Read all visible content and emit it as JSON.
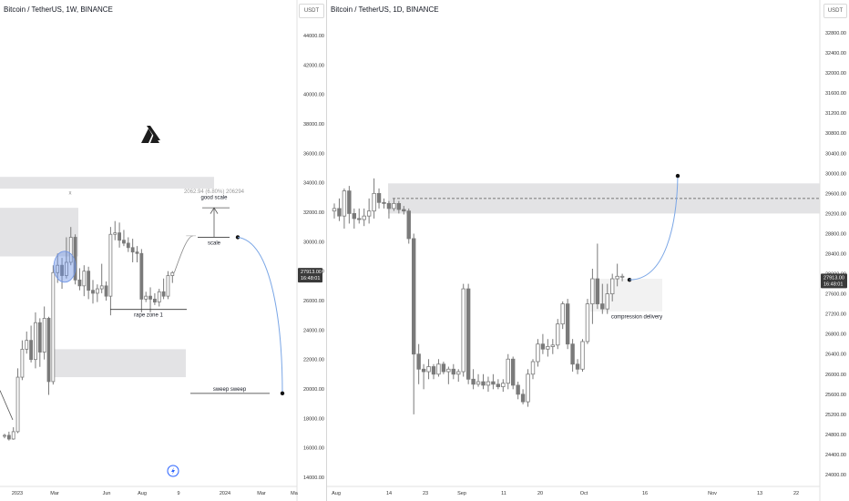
{
  "colors": {
    "candle": "#7a7a7a",
    "zone_fill": "#e3e3e5",
    "highlight": "#6f95e6",
    "arrow": "#7aa6e6",
    "text": "#131722",
    "axis_text": "#333333",
    "price_label_bg": "#3a3a3a"
  },
  "left": {
    "title": "Bitcoin / TetherUS, 1W, BINANCE",
    "unit_button": "USDT",
    "price_label": "27913.00",
    "countdown_label": "16:48:01",
    "logo_icon": "tradingview-logo-icon",
    "lightning_icon": "lightning-icon",
    "annotations": {
      "x_marker": "x",
      "measure": "2062.94 (6.80%) 206294",
      "good_scale": "good scale",
      "scale": "scale",
      "rape_zone": "rape zone 1",
      "sweep": "sweep sweep"
    }
  },
  "right": {
    "title": "Bitcoin / TetherUS, 1D, BINANCE",
    "unit_button": "USDT",
    "price_label": "27913.00",
    "countdown_label": "16:48:01",
    "annotations": {
      "compression": "compression delivery"
    }
  },
  "chart_data": [
    {
      "type": "candlestick",
      "title": "Bitcoin / TetherUS, 1W, BINANCE",
      "timeframe": "1W",
      "y_axis_ticks": [
        14000,
        16000,
        18000,
        20000,
        22000,
        24000,
        26000,
        28000,
        30000,
        32000,
        34000,
        36000,
        38000,
        40000,
        42000,
        44000
      ],
      "ylim": [
        13500,
        45500
      ],
      "x_axis_ticks": [
        "2023",
        "Mar",
        "Jun",
        "Aug",
        "9",
        "2024",
        "Mar",
        "Ma"
      ],
      "last_price": 27913.0,
      "series": [
        {
          "name": "candles",
          "ohlc": [
            [
              16800,
              16950,
              16650,
              16850
            ],
            [
              16850,
              17100,
              16500,
              16600
            ],
            [
              16600,
              17400,
              16550,
              17100
            ],
            [
              17100,
              21400,
              17000,
              20800
            ],
            [
              20800,
              23300,
              20600,
              22700
            ],
            [
              22700,
              23900,
              22400,
              23300
            ],
            [
              23300,
              24300,
              21800,
              22000
            ],
            [
              22000,
              25200,
              21400,
              24500
            ],
            [
              24500,
              24800,
              21500,
              22500
            ],
            [
              22500,
              25600,
              22000,
              24800
            ],
            [
              24800,
              24900,
              19600,
              20500
            ],
            [
              20500,
              28400,
              20300,
              27900
            ],
            [
              27900,
              29200,
              27200,
              28400
            ],
            [
              28400,
              28900,
              26800,
              27700
            ],
            [
              27700,
              30300,
              27500,
              28600
            ],
            [
              28600,
              31000,
              28400,
              30300
            ],
            [
              30300,
              30500,
              27100,
              27400
            ],
            [
              27400,
              28200,
              26700,
              27000
            ],
            [
              27000,
              28400,
              26300,
              28000
            ],
            [
              28000,
              28300,
              26100,
              26700
            ],
            [
              26700,
              27400,
              25800,
              26500
            ],
            [
              26500,
              27100,
              25900,
              26800
            ],
            [
              26800,
              28500,
              26500,
              27000
            ],
            [
              27000,
              27300,
              26000,
              26300
            ],
            [
              26300,
              31000,
              25000,
              30500
            ],
            [
              30500,
              31400,
              30100,
              30600
            ],
            [
              30600,
              31300,
              29600,
              30100
            ],
            [
              30100,
              30800,
              29700,
              29900
            ],
            [
              29900,
              30300,
              29300,
              29600
            ],
            [
              29600,
              30200,
              28600,
              29300
            ],
            [
              29300,
              29700,
              28600,
              29200
            ],
            [
              29200,
              29500,
              25200,
              26100
            ],
            [
              26100,
              26600,
              25900,
              26300
            ],
            [
              26300,
              26900,
              25200,
              26100
            ],
            [
              26100,
              26500,
              25700,
              25900
            ],
            [
              25900,
              26800,
              25600,
              26600
            ],
            [
              26600,
              27500,
              26100,
              26300
            ],
            [
              26300,
              28000,
              26100,
              27700
            ],
            [
              27700,
              28000,
              27200,
              27900
            ]
          ]
        }
      ],
      "zones": [
        {
          "label": "",
          "price_range": [
            33600,
            34400
          ]
        },
        {
          "label": "",
          "price_range": [
            29000,
            32300
          ]
        },
        {
          "label": "",
          "price_range": [
            20800,
            22700
          ]
        }
      ],
      "annotations": [
        "x",
        "2062.94 (6.80%) 206294",
        "good scale",
        "scale",
        "rape zone 1",
        "sweep sweep"
      ]
    },
    {
      "type": "candlestick",
      "title": "Bitcoin / TetherUS, 1D, BINANCE",
      "timeframe": "1D",
      "y_axis_ticks": [
        24000,
        24400,
        24800,
        25200,
        25600,
        26000,
        26400,
        26800,
        27200,
        27600,
        28000,
        28400,
        28800,
        29200,
        29600,
        30000,
        30400,
        30800,
        31200,
        31600,
        32000,
        32400,
        32800
      ],
      "ylim": [
        23900,
        33050
      ],
      "x_axis_ticks": [
        "Aug",
        "14",
        "23",
        "Sep",
        "11",
        "20",
        "Oct",
        "16",
        "Nov",
        "13",
        "22"
      ],
      "last_price": 27913.0,
      "series": [
        {
          "name": "candles",
          "ohlc": [
            [
              29250,
              29400,
              29100,
              29300
            ],
            [
              29300,
              29500,
              29050,
              29150
            ],
            [
              29150,
              29700,
              28900,
              29650
            ],
            [
              29650,
              29750,
              29000,
              29200
            ],
            [
              29200,
              29300,
              28900,
              29100
            ],
            [
              29100,
              29300,
              29000,
              29080
            ],
            [
              29080,
              29300,
              28950,
              29150
            ],
            [
              29150,
              29500,
              29000,
              29250
            ],
            [
              29250,
              29900,
              29100,
              29600
            ],
            [
              29600,
              29700,
              29300,
              29420
            ],
            [
              29420,
              29500,
              29300,
              29400
            ],
            [
              29400,
              29450,
              29100,
              29300
            ],
            [
              29300,
              29500,
              29250,
              29400
            ],
            [
              29400,
              29450,
              29200,
              29280
            ],
            [
              29280,
              29350,
              29180,
              29250
            ],
            [
              29250,
              29300,
              28600,
              28700
            ],
            [
              28700,
              28800,
              25200,
              26400
            ],
            [
              26400,
              26600,
              25800,
              26100
            ],
            [
              26100,
              26200,
              25700,
              26050
            ],
            [
              26050,
              26300,
              25900,
              26150
            ],
            [
              26150,
              26200,
              25900,
              26000
            ],
            [
              26000,
              26300,
              25950,
              26200
            ],
            [
              26200,
              26250,
              26000,
              26050
            ],
            [
              26050,
              26150,
              25800,
              26100
            ],
            [
              26100,
              26200,
              25900,
              26000
            ],
            [
              26000,
              26100,
              25850,
              26050
            ],
            [
              26050,
              27800,
              25950,
              27700
            ],
            [
              27700,
              27800,
              25800,
              25900
            ],
            [
              25900,
              26100,
              25700,
              25800
            ],
            [
              25800,
              26000,
              25750,
              25850
            ],
            [
              25850,
              26000,
              25700,
              25780
            ],
            [
              25780,
              25950,
              25650,
              25850
            ],
            [
              25850,
              26000,
              25700,
              25800
            ],
            [
              25800,
              25900,
              25700,
              25750
            ],
            [
              25750,
              25900,
              25650,
              25820
            ],
            [
              25820,
              26400,
              25700,
              26300
            ],
            [
              26300,
              26350,
              25700,
              25780
            ],
            [
              25780,
              25850,
              25500,
              25600
            ],
            [
              25600,
              25700,
              25400,
              25450
            ],
            [
              25450,
              26100,
              25350,
              26000
            ],
            [
              26000,
              26300,
              25900,
              26250
            ],
            [
              26250,
              26700,
              26150,
              26600
            ],
            [
              26600,
              26800,
              26400,
              26500
            ],
            [
              26500,
              26700,
              26350,
              26550
            ],
            [
              26550,
              26700,
              26400,
              26580
            ],
            [
              26580,
              27100,
              26500,
              27000
            ],
            [
              27000,
              27450,
              26900,
              27400
            ],
            [
              27400,
              27500,
              26500,
              26600
            ],
            [
              26600,
              26700,
              26050,
              26200
            ],
            [
              26200,
              26300,
              26000,
              26100
            ],
            [
              26100,
              26700,
              26050,
              26650
            ],
            [
              26650,
              27500,
              26600,
              27400
            ],
            [
              27400,
              28100,
              27000,
              27900
            ],
            [
              27900,
              28600,
              27300,
              27400
            ],
            [
              27400,
              27800,
              27200,
              27300
            ],
            [
              27300,
              27800,
              27200,
              27600
            ],
            [
              27600,
              28000,
              27450,
              27900
            ],
            [
              27900,
              28200,
              27750,
              27950
            ],
            [
              27950,
              28000,
              27850,
              27950
            ]
          ]
        }
      ],
      "zones": [
        {
          "label": "",
          "price_range": [
            29200,
            29800
          ]
        },
        {
          "label": "compression delivery",
          "price_range": [
            27250,
            27900
          ]
        }
      ],
      "annotations": [
        "compression delivery"
      ]
    }
  ]
}
